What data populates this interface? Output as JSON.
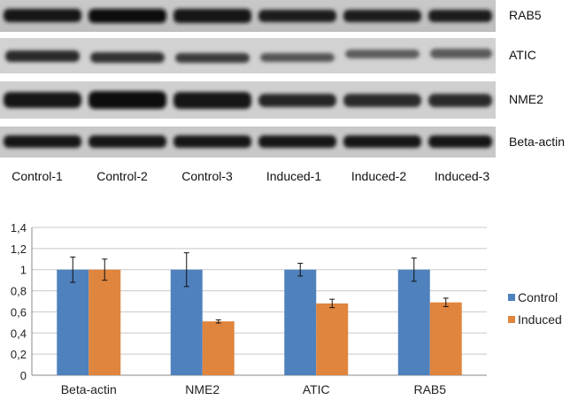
{
  "blot": {
    "rows": [
      "RAB5",
      "ATIC",
      "NME2",
      "Beta-actin"
    ],
    "lanes": [
      "Control-1",
      "Control-2",
      "Control-3",
      "Induced-1",
      "Induced-2",
      "Induced-3"
    ]
  },
  "chart_data": {
    "type": "bar",
    "categories": [
      "Beta-actin",
      "NME2",
      "ATIC",
      "RAB5"
    ],
    "series": [
      {
        "name": "Control",
        "color": "#4F81BD",
        "values": [
          1.0,
          1.0,
          1.0,
          1.0
        ],
        "errors": [
          0.12,
          0.16,
          0.06,
          0.11
        ]
      },
      {
        "name": "Induced",
        "color": "#E0853E",
        "values": [
          1.0,
          0.51,
          0.68,
          0.69
        ],
        "errors": [
          0.1,
          0.015,
          0.04,
          0.04
        ]
      }
    ],
    "yticks": [
      "0",
      "0,2",
      "0,4",
      "0,6",
      "0,8",
      "1",
      "1,2",
      "1,4"
    ],
    "ylim": [
      0,
      1.4
    ],
    "grid": true,
    "legend": "right"
  }
}
